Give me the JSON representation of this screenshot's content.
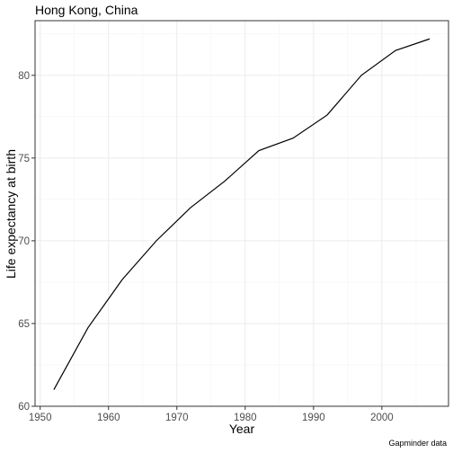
{
  "chart_data": {
    "type": "line",
    "title": "Hong Kong, China",
    "xlabel": "Year",
    "ylabel": "Life expectancy at birth",
    "caption": "Gapminder data",
    "x": [
      1952,
      1957,
      1962,
      1967,
      1972,
      1977,
      1982,
      1987,
      1992,
      1997,
      2002,
      2007
    ],
    "series": [
      {
        "values": [
          61.0,
          64.75,
          67.65,
          70.0,
          72.0,
          73.6,
          75.45,
          76.2,
          77.6,
          80.0,
          81.5,
          82.2
        ]
      }
    ],
    "xlim": [
      1949.25,
      2009.75
    ],
    "ylim": [
      60.0,
      83.3
    ],
    "xticks": [
      1950,
      1960,
      1970,
      1980,
      1990,
      2000
    ],
    "yticks": [
      60,
      65,
      70,
      75,
      80
    ],
    "grid": true,
    "colors": {
      "line": "#000000",
      "grid": "#ebebeb",
      "border": "#333333"
    }
  }
}
